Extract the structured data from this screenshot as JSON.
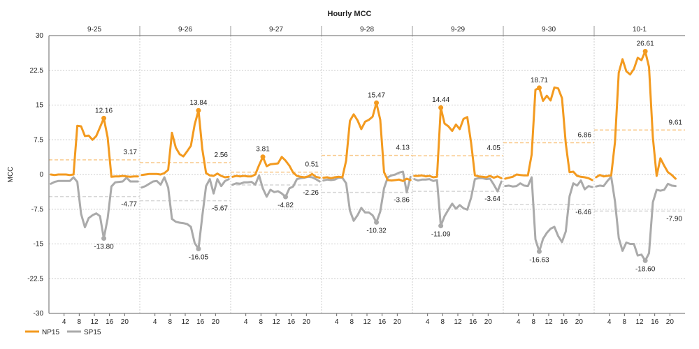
{
  "chart_data": {
    "type": "line",
    "title": "Hourly MCC",
    "ylabel": "MCC",
    "ylim": [
      -30,
      30
    ],
    "yticks": [
      30,
      22.5,
      15,
      7.5,
      0,
      -7.5,
      -15,
      -22.5,
      -30
    ],
    "ytick_labels": [
      "30",
      "22.5",
      "15",
      "7.5",
      "0",
      "-7.5",
      "-15",
      "-22.5",
      "-30"
    ],
    "hour_tick_labels": [
      "4",
      "8",
      "12",
      "16",
      "20"
    ],
    "days": [
      "9-25",
      "9-26",
      "9-27",
      "9-28",
      "9-29",
      "9-30",
      "10-1"
    ],
    "colors": {
      "NP15": "#f39a1f",
      "SP15": "#aaaaaa",
      "np_avg": "#f9c98a",
      "sp_avg": "#d6d6d6",
      "grid": "#cccccc"
    },
    "series": [
      {
        "name": "NP15",
        "color": "#f39a1f",
        "days": [
          [
            0.0,
            -0.1,
            0.0,
            0.0,
            0.0,
            -0.1,
            0.0,
            10.5,
            10.4,
            8.3,
            8.4,
            7.5,
            8.3,
            10.2,
            12.16,
            8.0,
            -0.5,
            -0.4,
            -0.4,
            -0.3,
            -0.4,
            -0.5,
            -0.4,
            -0.4
          ],
          [
            -0.1,
            0.0,
            0.1,
            0.1,
            0.1,
            0.0,
            0.3,
            1.0,
            9.0,
            5.8,
            4.4,
            3.9,
            5.0,
            6.2,
            10.8,
            13.84,
            5.5,
            0.3,
            -0.2,
            -0.3,
            0.2,
            -0.3,
            -0.6,
            -0.5
          ],
          [
            -0.5,
            -0.3,
            -0.4,
            -0.3,
            -0.4,
            -0.4,
            0.0,
            2.0,
            3.81,
            1.8,
            2.2,
            2.3,
            2.4,
            3.8,
            3.0,
            1.9,
            0.4,
            -0.3,
            -0.5,
            -0.6,
            -0.4,
            0.1,
            -0.5,
            -0.7
          ],
          [
            -0.7,
            -0.6,
            -0.8,
            -0.6,
            -0.5,
            -0.6,
            3.0,
            11.6,
            13.0,
            11.7,
            9.8,
            11.4,
            11.8,
            12.5,
            15.47,
            11.8,
            0.5,
            -1.2,
            -1.3,
            -1.2,
            -1.1,
            -1.4,
            -0.9,
            -1.2
          ],
          [
            -0.3,
            -0.3,
            -0.2,
            -0.4,
            -0.3,
            -0.6,
            -0.5,
            14.44,
            11.0,
            10.4,
            9.4,
            10.8,
            9.8,
            12.0,
            12.4,
            6.8,
            -0.2,
            -0.4,
            -0.5,
            -0.6,
            -0.3,
            -0.7,
            -0.4,
            -0.8
          ],
          [
            -0.9,
            -0.7,
            -0.5,
            0.0,
            -0.1,
            -0.2,
            -0.2,
            4.3,
            18.3,
            18.71,
            15.9,
            17.0,
            16.0,
            18.8,
            18.6,
            16.5,
            6.7,
            0.5,
            0.6,
            -0.3,
            -0.5,
            -0.6,
            -0.8,
            -1.2
          ],
          [
            -0.6,
            -0.1,
            -0.4,
            -0.3,
            -0.2,
            7.0,
            22.0,
            24.9,
            22.3,
            21.6,
            22.8,
            25.2,
            24.7,
            26.61,
            23.2,
            8.0,
            -0.3,
            3.5,
            1.9,
            0.5,
            -0.1,
            -0.9
          ]
        ],
        "averages": [
          3.17,
          2.56,
          0.51,
          4.13,
          4.05,
          6.86,
          9.61
        ],
        "peaks": [
          {
            "day": 0,
            "hour": 14,
            "value": 12.16
          },
          {
            "day": 1,
            "hour": 15,
            "value": 13.84
          },
          {
            "day": 2,
            "hour": 8,
            "value": 3.81
          },
          {
            "day": 3,
            "hour": 14,
            "value": 15.47
          },
          {
            "day": 4,
            "hour": 7,
            "value": 14.44
          },
          {
            "day": 5,
            "hour": 9,
            "value": 18.71
          },
          {
            "day": 6,
            "hour": 13,
            "value": 26.61
          }
        ]
      },
      {
        "name": "SP15",
        "color": "#aaaaaa",
        "days": [
          [
            -2.0,
            -1.6,
            -1.4,
            -1.4,
            -1.4,
            -1.4,
            -0.6,
            -1.6,
            -8.5,
            -11.4,
            -9.4,
            -8.8,
            -8.4,
            -9.0,
            -13.8,
            -9.5,
            -2.6,
            -1.7,
            -1.6,
            -1.5,
            -0.7,
            -1.5,
            -1.5,
            -1.5
          ],
          [
            -2.8,
            -2.5,
            -2.0,
            -1.5,
            -1.4,
            -2.2,
            -0.6,
            -2.8,
            -9.6,
            -10.2,
            -10.4,
            -10.5,
            -10.7,
            -11.3,
            -14.8,
            -16.05,
            -9.0,
            -2.5,
            -1.0,
            -4.1,
            -1.0,
            -2.5,
            -1.4,
            -1.0
          ],
          [
            -2.2,
            -1.9,
            -2.0,
            -1.7,
            -1.7,
            -1.6,
            -2.2,
            -0.2,
            -3.0,
            -4.8,
            -3.3,
            -3.8,
            -3.6,
            -4.1,
            -4.82,
            -3.0,
            -2.6,
            -1.0,
            -0.8,
            -0.7,
            -0.5,
            -0.6,
            -1.0,
            -1.5
          ],
          [
            -1.3,
            -1.1,
            -1.2,
            -1.1,
            -0.7,
            -0.7,
            -1.9,
            -7.8,
            -10.0,
            -8.8,
            -7.2,
            -8.2,
            -8.2,
            -8.8,
            -10.32,
            -8.0,
            -3.0,
            -0.6,
            -0.2,
            0.0,
            0.4,
            0.6,
            -3.86,
            -0.5
          ],
          [
            -1.0,
            -1.3,
            -1.1,
            -1.1,
            -1.0,
            -1.4,
            -1.2,
            -11.09,
            -9.0,
            -7.6,
            -6.3,
            -7.4,
            -6.6,
            -7.3,
            -7.6,
            -5.0,
            -1.0,
            -0.8,
            -0.8,
            -1.0,
            -0.9,
            -2.2,
            -3.64,
            -1.5
          ],
          [
            -2.5,
            -2.4,
            -2.6,
            -2.5,
            -1.9,
            -2.4,
            -2.5,
            -0.6,
            -14.0,
            -16.63,
            -13.9,
            -12.6,
            -11.7,
            -11.3,
            -13.3,
            -14.6,
            -12.3,
            -4.7,
            -1.9,
            -2.4,
            -1.3,
            -3.2,
            -2.5,
            -2.7
          ],
          [
            -2.6,
            -2.4,
            -2.5,
            -1.4,
            -0.5,
            -5.8,
            -13.7,
            -16.5,
            -14.7,
            -15.0,
            -15.0,
            -17.5,
            -17.3,
            -18.6,
            -17.0,
            -6.0,
            -3.3,
            -3.5,
            -3.3,
            -2.0,
            -2.4,
            -2.5
          ]
        ],
        "averages": [
          -4.77,
          -5.67,
          -2.26,
          -3.86,
          -3.64,
          -6.46,
          -7.9
        ],
        "troughs": [
          {
            "day": 0,
            "hour": 14,
            "value": -13.8
          },
          {
            "day": 1,
            "hour": 15,
            "value": -16.05
          },
          {
            "day": 2,
            "hour": 14,
            "value": -4.82
          },
          {
            "day": 3,
            "hour": 14,
            "value": -10.32
          },
          {
            "day": 4,
            "hour": 7,
            "value": -11.09
          },
          {
            "day": 5,
            "hour": 9,
            "value": -16.63
          },
          {
            "day": 6,
            "hour": 13,
            "value": -18.6
          }
        ]
      }
    ],
    "np_avg_labels": [
      "3.17",
      "2.56",
      "0.51",
      "4.13",
      "4.05",
      "6.86",
      "9.61"
    ],
    "sp_avg_labels": [
      "-4.77",
      "-5.67",
      "-2.26",
      "-3.86",
      "-3.64",
      "-6.46",
      "-7.90"
    ],
    "np_peak_labels": [
      "12.16",
      "13.84",
      "3.81",
      "15.47",
      "14.44",
      "18.71",
      "26.61"
    ],
    "sp_trough_labels": [
      "-13.80",
      "-16.05",
      "-4.82",
      "-10.32",
      "-11.09",
      "-16.63",
      "-18.60"
    ],
    "legend": [
      "NP15",
      "SP15"
    ],
    "legend_position": "bottom-left"
  }
}
